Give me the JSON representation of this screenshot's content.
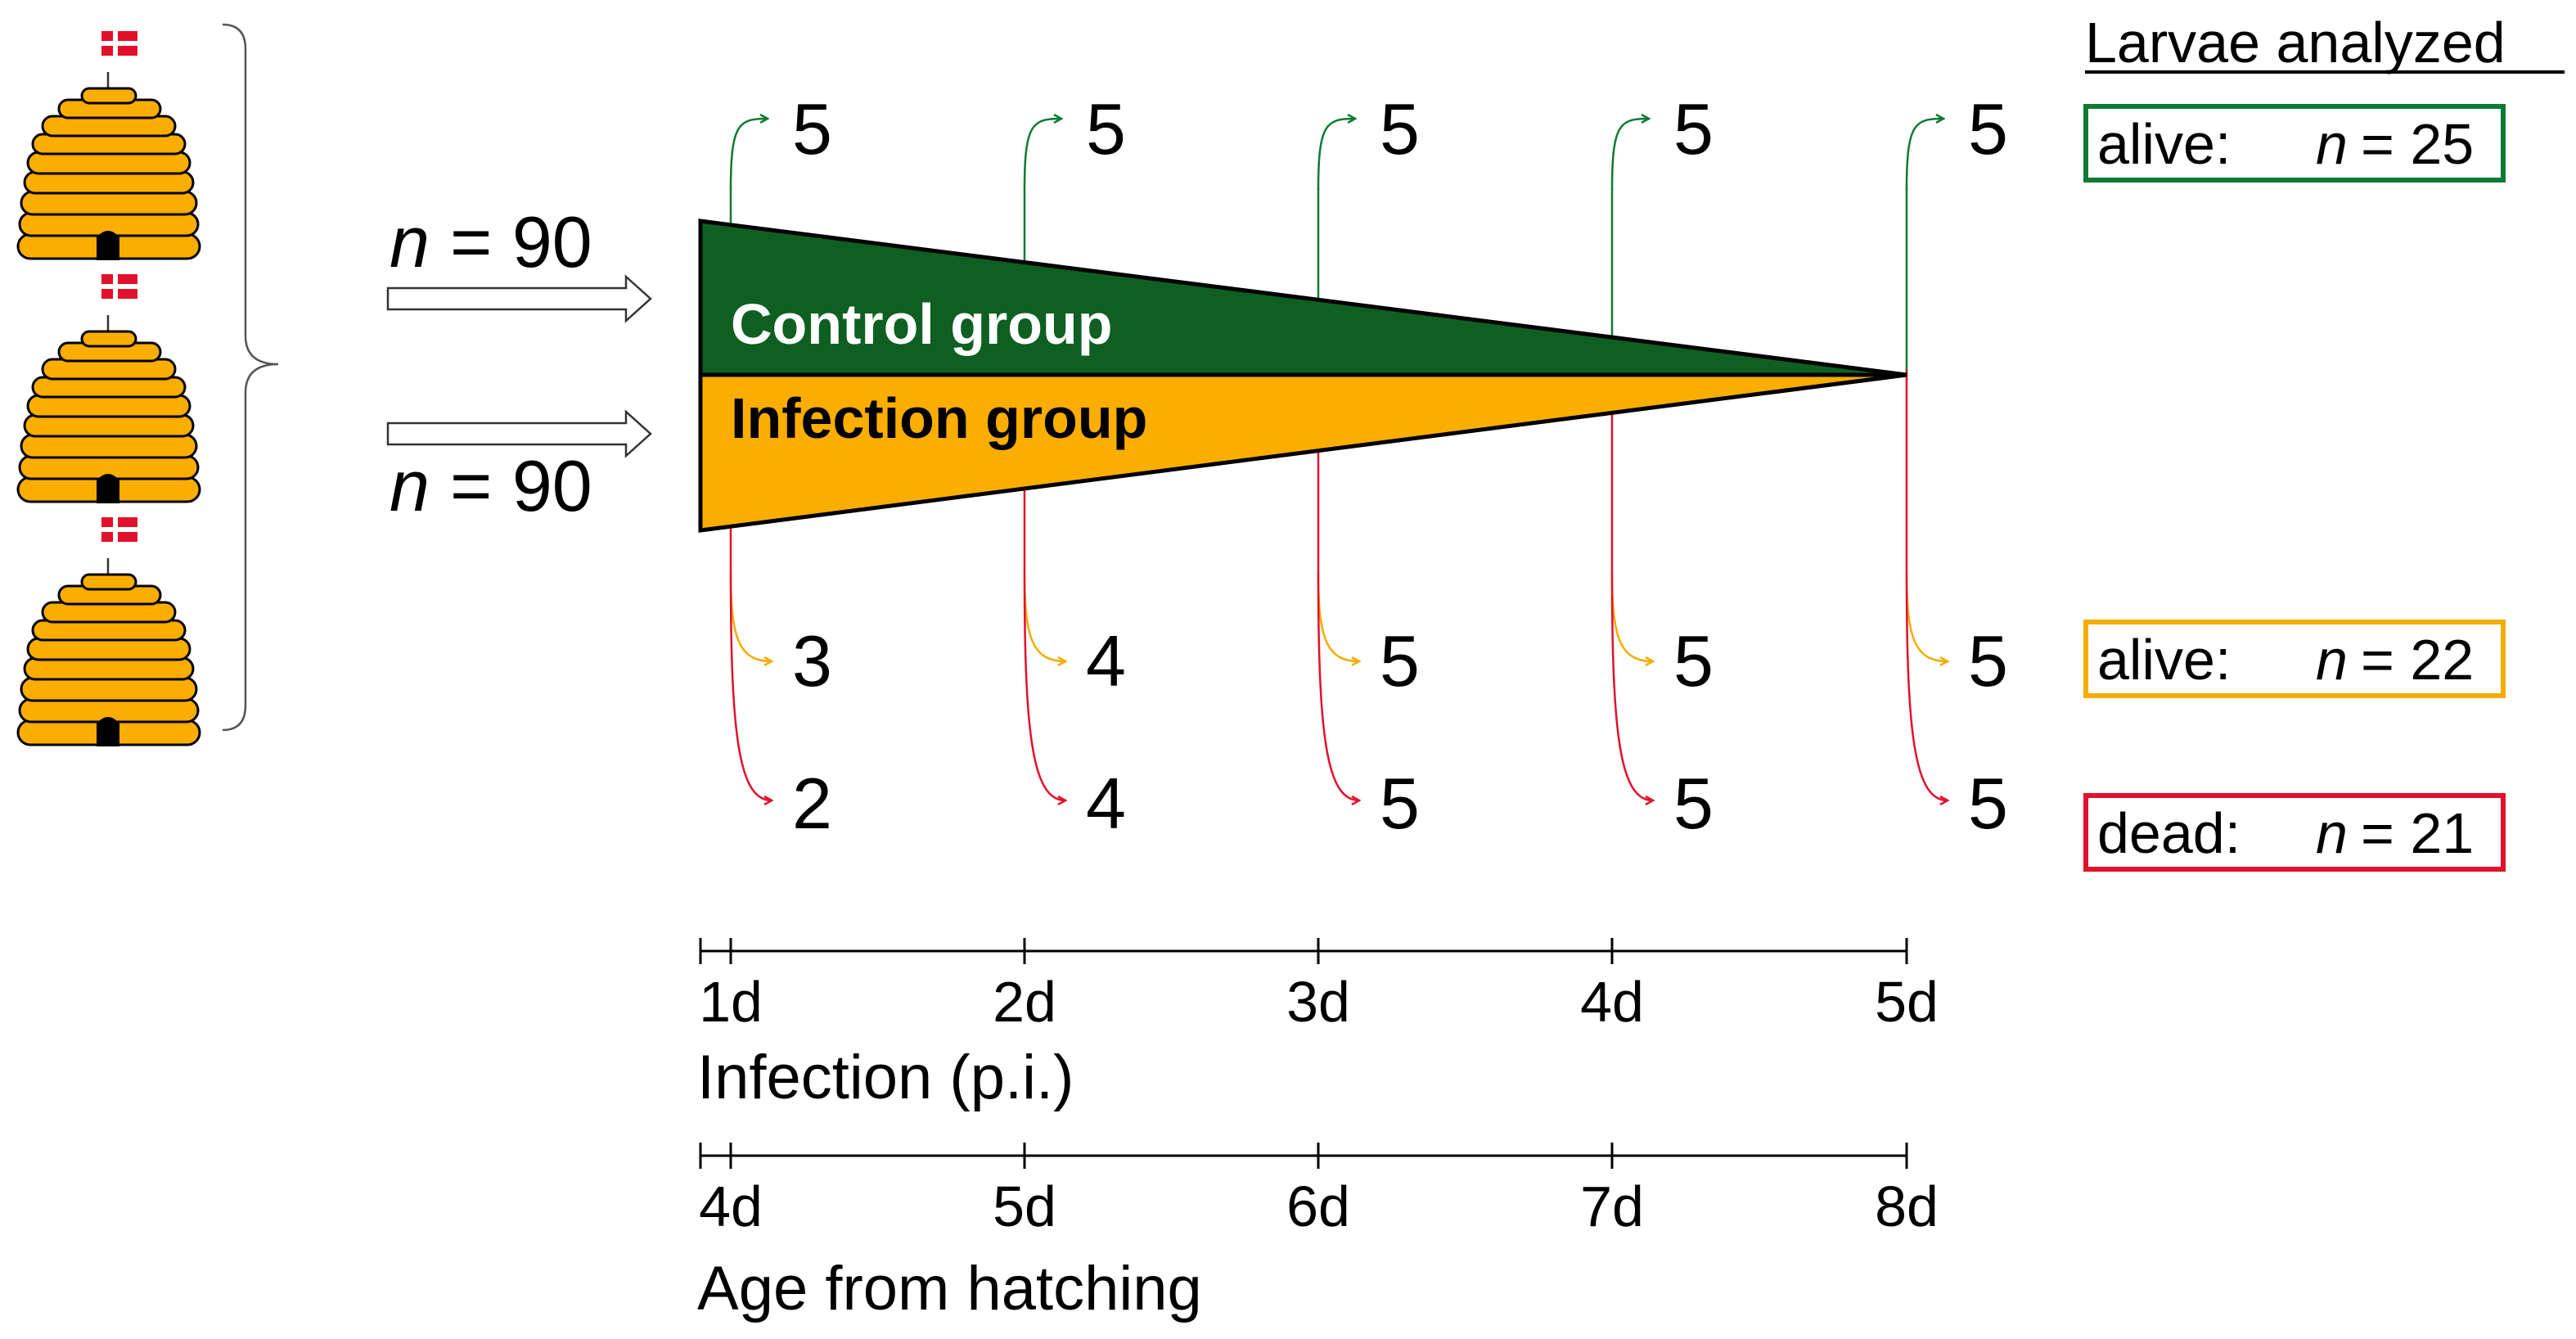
{
  "title": "Larvae analyzed",
  "input": {
    "top": {
      "n_label": "n",
      "n_value": "= 90"
    },
    "bottom": {
      "n_label": "n",
      "n_value": "= 90"
    }
  },
  "groups": {
    "control": {
      "label": "Control group",
      "color": "#0f5f23"
    },
    "infection": {
      "label": "Infection group",
      "color": "#fbad00"
    }
  },
  "timepoints": [
    {
      "infection": "1d",
      "age": "4d",
      "control_alive": 5,
      "infection_alive": 3,
      "infection_dead": 2
    },
    {
      "infection": "2d",
      "age": "5d",
      "control_alive": 5,
      "infection_alive": 4,
      "infection_dead": 4
    },
    {
      "infection": "3d",
      "age": "6d",
      "control_alive": 5,
      "infection_alive": 5,
      "infection_dead": 5
    },
    {
      "infection": "4d",
      "age": "7d",
      "control_alive": 5,
      "infection_alive": 5,
      "infection_dead": 5
    },
    {
      "infection": "5d",
      "age": "8d",
      "control_alive": 5,
      "infection_alive": 5,
      "infection_dead": 5
    }
  ],
  "totals": [
    {
      "label": "alive:",
      "n_label": "n",
      "n_value": "= 25",
      "color": "#0f7a33"
    },
    {
      "label": "alive:",
      "n_label": "n",
      "n_value": "= 22",
      "color": "#f6ab00"
    },
    {
      "label": "dead:",
      "n_label": "n",
      "n_value": "= 21",
      "color": "#e2102b"
    }
  ],
  "axes": {
    "infection_label": "Infection (p.i.)",
    "age_label": "Age from hatching"
  },
  "colors": {
    "hive_fill": "#fbad00",
    "flag_red": "#e2102b",
    "arrow_green": "#0f7a33",
    "arrow_orange": "#f6ab00",
    "arrow_red": "#e2102b"
  }
}
